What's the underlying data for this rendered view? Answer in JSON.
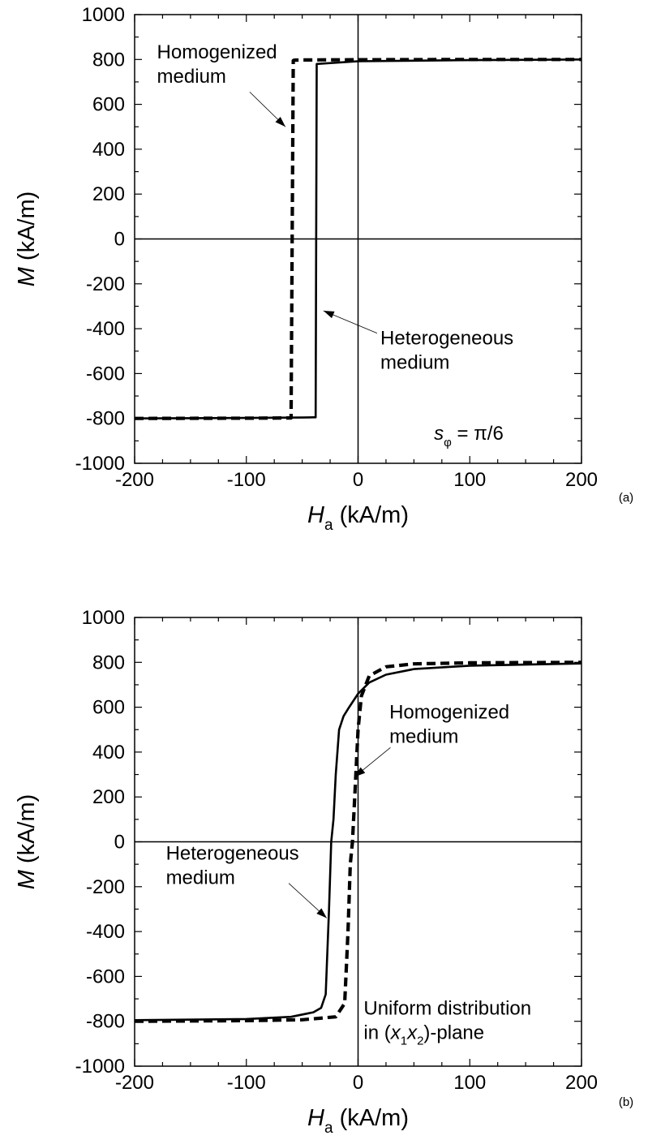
{
  "chart_data": [
    {
      "panel_label": "(a)",
      "type": "line",
      "xlabel": {
        "symbol": "H",
        "sub": "a",
        "unit": " (kA/m)"
      },
      "ylabel": {
        "symbol": "M",
        "unit": " (kA/m)"
      },
      "xlim": [
        -200,
        200
      ],
      "ylim": [
        -1000,
        1000
      ],
      "xticks": [
        -200,
        -100,
        0,
        100,
        200
      ],
      "yticks": [
        -1000,
        -800,
        -600,
        -400,
        -200,
        0,
        200,
        400,
        600,
        800,
        1000
      ],
      "x_minor_step": 25,
      "y_minor_step": 100,
      "zero_lines": true,
      "grid": false,
      "series": [
        {
          "style": "solid",
          "x": [
            -200,
            -100,
            -50,
            -40,
            -38,
            -37,
            0,
            100,
            200
          ],
          "y": [
            -800,
            -798,
            -796,
            -795,
            -795,
            780,
            792,
            797,
            800
          ]
        },
        {
          "style": "dashed",
          "x": [
            -200,
            -100,
            -62,
            -60,
            -58,
            -57,
            -50,
            0,
            100,
            200
          ],
          "y": [
            -800,
            -799,
            -798,
            -798,
            795,
            797,
            798,
            799,
            800,
            800
          ]
        }
      ],
      "annotations": [
        {
          "lines": [
            "Homogenized",
            "medium"
          ],
          "tx": -180,
          "ty": 805,
          "ax": -65,
          "ay": 500,
          "bx": -97,
          "by": 655
        },
        {
          "lines": [
            "Heterogeneous",
            "medium"
          ],
          "tx": 20,
          "ty": -470,
          "ax": -31,
          "ay": -320,
          "bx": 17,
          "by": -420
        },
        {
          "text": "s_φ = π/6",
          "symbol": "s",
          "sub": "φ",
          "rest": " = π/6",
          "tx": 68,
          "ty": -895
        }
      ]
    },
    {
      "panel_label": "(b)",
      "type": "line",
      "xlabel": {
        "symbol": "H",
        "sub": "a",
        "unit": " (kA/m)"
      },
      "ylabel": {
        "symbol": "M",
        "unit": " (kA/m)"
      },
      "xlim": [
        -200,
        200
      ],
      "ylim": [
        -1000,
        1000
      ],
      "xticks": [
        -200,
        -100,
        0,
        100,
        200
      ],
      "yticks": [
        -1000,
        -800,
        -600,
        -400,
        -200,
        0,
        200,
        400,
        600,
        800,
        1000
      ],
      "x_minor_step": 25,
      "y_minor_step": 100,
      "zero_lines": true,
      "grid": false,
      "series": [
        {
          "style": "solid",
          "x": [
            -200,
            -100,
            -60,
            -40,
            -33,
            -29,
            -26,
            -24,
            -22,
            -20,
            -17,
            -13,
            -8,
            0,
            10,
            25,
            50,
            100,
            200
          ],
          "y": [
            -795,
            -790,
            -780,
            -760,
            -740,
            -680,
            -300,
            0,
            100,
            300,
            500,
            560,
            600,
            660,
            710,
            745,
            770,
            785,
            795
          ]
        },
        {
          "style": "dashed",
          "x": [
            -200,
            -100,
            -50,
            -20,
            -12,
            -9,
            -7,
            -5,
            -3,
            0,
            3,
            10,
            25,
            50,
            100,
            200
          ],
          "y": [
            -800,
            -797,
            -793,
            -780,
            -720,
            -400,
            -100,
            0,
            200,
            500,
            650,
            740,
            780,
            793,
            798,
            800
          ]
        }
      ],
      "annotations": [
        {
          "lines": [
            "Homogenized",
            "medium"
          ],
          "tx": 28,
          "ty": 550,
          "ax": -3,
          "ay": 290,
          "bx": 29,
          "by": 420
        },
        {
          "lines": [
            "Heterogeneous",
            "medium"
          ],
          "tx": -172,
          "ty": -80,
          "ax": -28,
          "ay": -340,
          "bx": -62,
          "by": -185
        },
        {
          "lines_custom": true,
          "line1": "Uniform distribution",
          "line2_pre": "in (",
          "x1": "x",
          "x1sub": "1",
          "x2": "x",
          "x2sub": "2",
          "line2_post": ")-plane",
          "tx": 5,
          "ty": -770
        }
      ]
    }
  ]
}
